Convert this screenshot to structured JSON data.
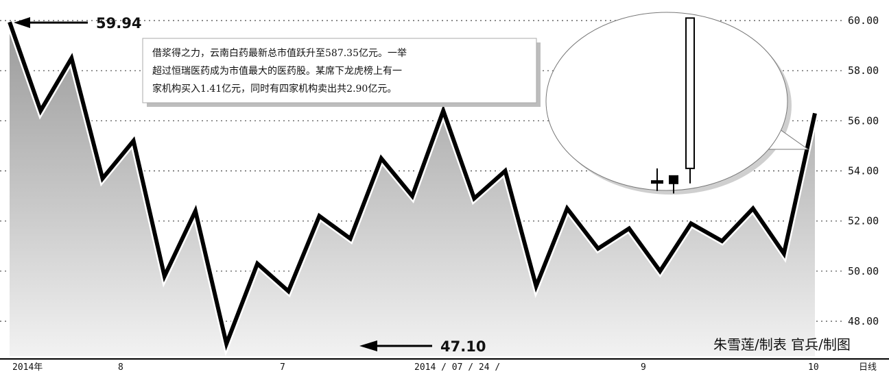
{
  "chart_data": {
    "type": "line",
    "title": "",
    "xlabel": "",
    "ylabel": "",
    "ylim": [
      47,
      61
    ],
    "yticks": [
      "48.00",
      "50.00",
      "52.00",
      "54.00",
      "56.00",
      "58.00",
      "60.00"
    ],
    "grid": true,
    "x_tick_labels": [
      "2014年",
      "8",
      "7",
      "2014 / 07 / 24 /",
      "9",
      "10",
      "日线"
    ],
    "series": [
      {
        "values": [
          59.94,
          56.4,
          58.5,
          53.7,
          55.2,
          49.8,
          52.4,
          47.1,
          50.3,
          49.2,
          52.2,
          51.3,
          54.5,
          53.0,
          56.4,
          52.9,
          54.0,
          49.4,
          52.5,
          50.9,
          51.7,
          50.0,
          51.9,
          51.2,
          52.5,
          50.7,
          56.3
        ]
      }
    ],
    "annotations": {
      "max_label": "59.94",
      "min_label": "47.10",
      "note": [
        "借浆得之力，云南白药最新总市值跃升至587.35亿元。一举",
        "超过恒瑞医药成为市值最大的医药股。某席下龙虎榜上有一",
        "家机构买入1.41亿元，同时有四家机构卖出共2.90亿元。"
      ]
    },
    "inset_candles": [
      {
        "open": 53.6,
        "close": 53.6,
        "high": 54.1,
        "low": 53.2
      },
      {
        "open": 53.8,
        "close": 53.5,
        "high": 53.8,
        "low": 53.1
      },
      {
        "open": 54.1,
        "close": 60.1,
        "high": 60.1,
        "low": 53.5
      }
    ]
  },
  "credits": "朱雪莲/制表  官兵/制图"
}
